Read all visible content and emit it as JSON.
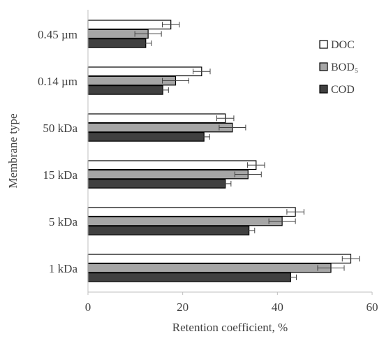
{
  "chart_data": {
    "type": "bar",
    "orientation": "horizontal",
    "title": "",
    "xlabel": "Retention coefficient, %",
    "ylabel": "Membrane type",
    "xlim": [
      0,
      60
    ],
    "x_ticks": [
      "0",
      "20",
      "40",
      "60"
    ],
    "grid": false,
    "legend_position": "right",
    "categories": [
      "0.45 µm",
      "0.14 µm",
      "50 kDa",
      "15 kDa",
      "5 kDa",
      "1 kDa"
    ],
    "series": [
      {
        "name": "DOC",
        "color": "#ffffff",
        "values": [
          17.5,
          24.0,
          29.0,
          35.5,
          43.8,
          55.5
        ],
        "errors": [
          1.8,
          1.8,
          1.8,
          1.8,
          1.8,
          1.8
        ]
      },
      {
        "name": "BOD₅",
        "color": "#a6a6a6",
        "values": [
          12.7,
          18.5,
          30.5,
          33.8,
          41.0,
          51.3
        ],
        "errors": [
          2.8,
          2.8,
          2.8,
          2.8,
          2.8,
          2.8
        ]
      },
      {
        "name": "COD",
        "color": "#404040",
        "values": [
          12.2,
          15.8,
          24.5,
          29.0,
          34.0,
          42.8
        ],
        "errors": [
          1.2,
          1.2,
          1.2,
          1.2,
          1.2,
          1.2
        ]
      }
    ]
  }
}
